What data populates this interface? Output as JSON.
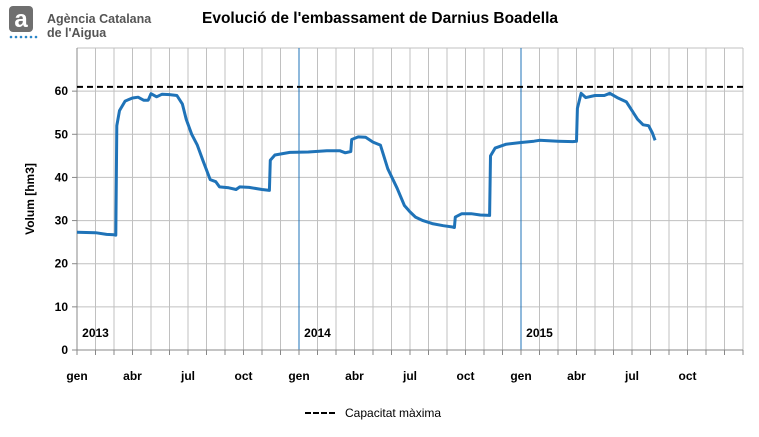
{
  "header": {
    "org_name_line1": "Agència Catalana",
    "org_name_line2": "de l'Aigua",
    "logo_glyph": "a"
  },
  "chart_data": {
    "type": "line",
    "title": "Evolució de l'embassament de Darnius Boadella",
    "xlabel": "",
    "ylabel": "Volum [hm3]",
    "ylim": [
      0,
      70
    ],
    "yticks": [
      0,
      10,
      20,
      30,
      40,
      50,
      60
    ],
    "xlim_months": [
      0,
      36
    ],
    "month_ticks": [
      {
        "m": 0,
        "label": "gen"
      },
      {
        "m": 3,
        "label": "abr"
      },
      {
        "m": 6,
        "label": "jul"
      },
      {
        "m": 9,
        "label": "oct"
      },
      {
        "m": 12,
        "label": "gen"
      },
      {
        "m": 15,
        "label": "abr"
      },
      {
        "m": 18,
        "label": "jul"
      },
      {
        "m": 21,
        "label": "oct"
      },
      {
        "m": 24,
        "label": "gen"
      },
      {
        "m": 27,
        "label": "abr"
      },
      {
        "m": 30,
        "label": "jul"
      },
      {
        "m": 33,
        "label": "oct"
      }
    ],
    "year_labels": [
      {
        "m": 1.0,
        "label": "2013"
      },
      {
        "m": 13.0,
        "label": "2014"
      },
      {
        "m": 25.0,
        "label": "2015"
      }
    ],
    "year_separators": [
      12,
      24
    ],
    "grid": true,
    "legend_position": "bottom",
    "colors": {
      "series": "#1f73b8",
      "capacity": "#000000",
      "grid": "#c0c0c0",
      "separator": "#1f73b8"
    },
    "capacity": {
      "name": "Capacitat màxima",
      "value": 61
    },
    "series": [
      {
        "color": "#1f73b8",
        "points": [
          [
            0.0,
            27.3
          ],
          [
            1.0,
            27.2
          ],
          [
            1.6,
            26.8
          ],
          [
            2.0,
            26.7
          ],
          [
            2.1,
            26.6
          ],
          [
            2.15,
            52.0
          ],
          [
            2.3,
            55.5
          ],
          [
            2.6,
            57.7
          ],
          [
            3.0,
            58.4
          ],
          [
            3.3,
            58.6
          ],
          [
            3.6,
            57.9
          ],
          [
            3.85,
            57.9
          ],
          [
            4.0,
            59.4
          ],
          [
            4.3,
            58.7
          ],
          [
            4.6,
            59.3
          ],
          [
            5.0,
            59.2
          ],
          [
            5.4,
            59.0
          ],
          [
            5.7,
            57.0
          ],
          [
            5.9,
            53.5
          ],
          [
            6.2,
            50.0
          ],
          [
            6.5,
            47.5
          ],
          [
            6.8,
            44.0
          ],
          [
            7.2,
            39.5
          ],
          [
            7.5,
            39.0
          ],
          [
            7.7,
            37.8
          ],
          [
            8.2,
            37.6
          ],
          [
            8.6,
            37.2
          ],
          [
            8.8,
            37.8
          ],
          [
            9.3,
            37.7
          ],
          [
            10.0,
            37.2
          ],
          [
            10.4,
            37.0
          ],
          [
            10.45,
            44.0
          ],
          [
            10.7,
            45.2
          ],
          [
            11.5,
            45.8
          ],
          [
            12.5,
            45.9
          ],
          [
            13.5,
            46.2
          ],
          [
            14.2,
            46.2
          ],
          [
            14.5,
            45.7
          ],
          [
            14.8,
            46.0
          ],
          [
            14.85,
            48.8
          ],
          [
            15.2,
            49.4
          ],
          [
            15.6,
            49.3
          ],
          [
            16.0,
            48.2
          ],
          [
            16.4,
            47.5
          ],
          [
            16.8,
            42.0
          ],
          [
            17.3,
            37.5
          ],
          [
            17.7,
            33.5
          ],
          [
            18.0,
            32.0
          ],
          [
            18.3,
            30.8
          ],
          [
            18.7,
            30.0
          ],
          [
            19.2,
            29.3
          ],
          [
            19.8,
            28.8
          ],
          [
            20.3,
            28.5
          ],
          [
            20.4,
            28.4
          ],
          [
            20.45,
            30.8
          ],
          [
            20.8,
            31.6
          ],
          [
            21.3,
            31.6
          ],
          [
            21.8,
            31.3
          ],
          [
            22.3,
            31.2
          ],
          [
            22.35,
            45.0
          ],
          [
            22.6,
            46.8
          ],
          [
            23.2,
            47.7
          ],
          [
            24.0,
            48.1
          ],
          [
            24.7,
            48.4
          ],
          [
            25.0,
            48.6
          ],
          [
            26.0,
            48.4
          ],
          [
            26.8,
            48.3
          ],
          [
            27.0,
            48.4
          ],
          [
            27.05,
            56.0
          ],
          [
            27.25,
            59.5
          ],
          [
            27.5,
            58.5
          ],
          [
            28.0,
            59.0
          ],
          [
            28.5,
            59.0
          ],
          [
            28.8,
            59.5
          ],
          [
            29.2,
            58.5
          ],
          [
            29.7,
            57.5
          ],
          [
            30.0,
            55.5
          ],
          [
            30.3,
            53.5
          ],
          [
            30.6,
            52.2
          ],
          [
            30.9,
            52.0
          ],
          [
            31.1,
            50.3
          ],
          [
            31.25,
            48.6
          ]
        ]
      }
    ]
  }
}
